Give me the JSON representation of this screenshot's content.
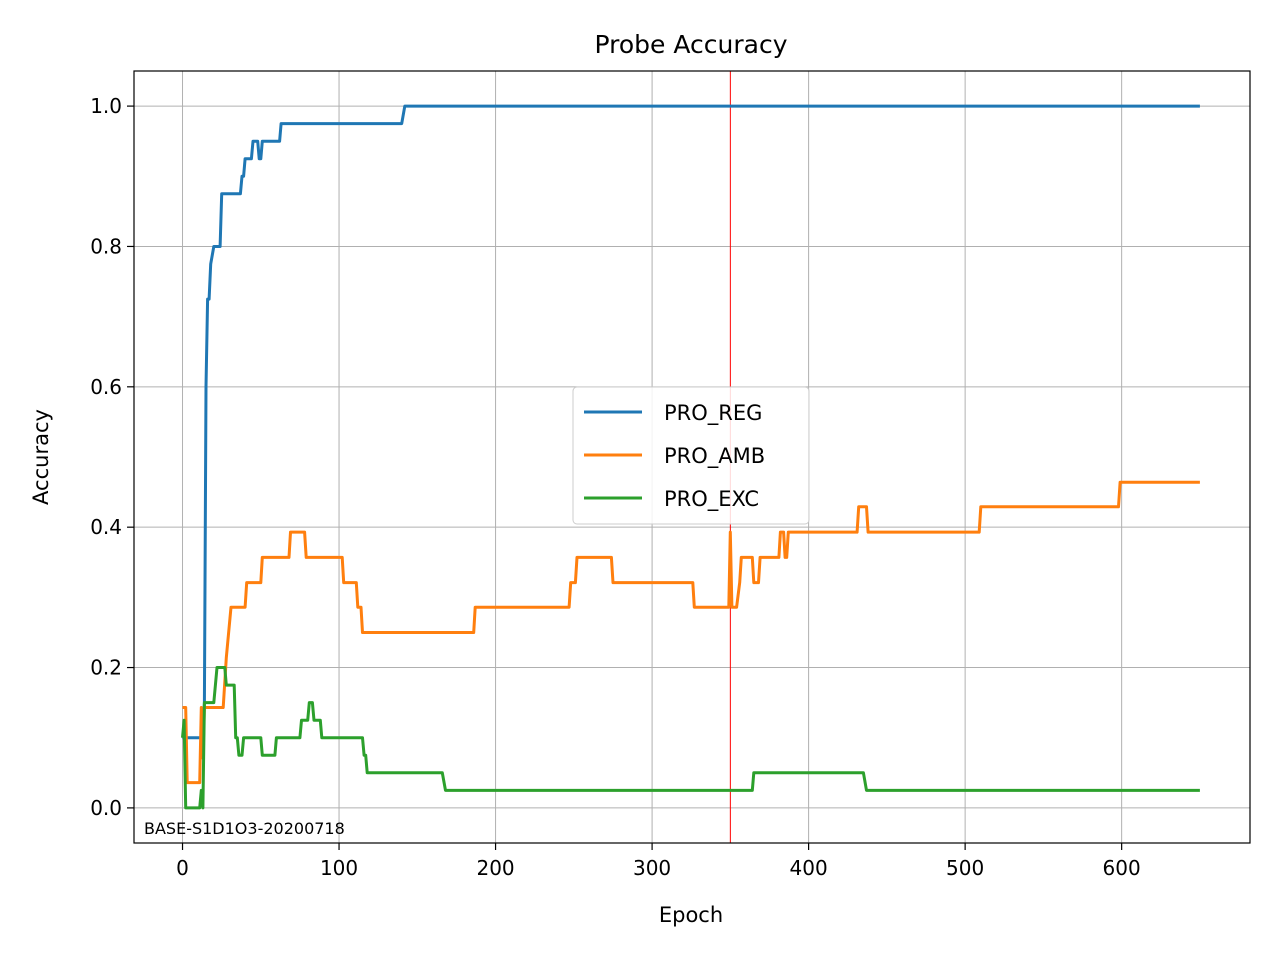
{
  "chart_data": {
    "type": "line",
    "title": "Probe Accuracy",
    "xlabel": "Epoch",
    "ylabel": "Accuracy",
    "xlim": [
      -31,
      682
    ],
    "ylim": [
      -0.05,
      1.05
    ],
    "xticks": [
      0,
      100,
      200,
      300,
      400,
      500,
      600
    ],
    "yticks": [
      0.0,
      0.2,
      0.4,
      0.6,
      0.8,
      1.0
    ],
    "xtick_labels": [
      "0",
      "100",
      "200",
      "300",
      "400",
      "500",
      "600"
    ],
    "ytick_labels": [
      "0.0",
      "0.2",
      "0.4",
      "0.6",
      "0.8",
      "1.0"
    ],
    "grid": true,
    "legend_position": "center-right",
    "vline": {
      "x": 350,
      "color": "#ff0000"
    },
    "annotation": "BASE-S1D1O3-20200718",
    "series": [
      {
        "name": "PRO_REG",
        "color": "#1f77b4",
        "points": [
          [
            0,
            0.1
          ],
          [
            13,
            0.1
          ],
          [
            14,
            0.15
          ],
          [
            15,
            0.6
          ],
          [
            16,
            0.725
          ],
          [
            17,
            0.725
          ],
          [
            18,
            0.775
          ],
          [
            20,
            0.8
          ],
          [
            24,
            0.8
          ],
          [
            25,
            0.875
          ],
          [
            37,
            0.875
          ],
          [
            38,
            0.9
          ],
          [
            39,
            0.9
          ],
          [
            40,
            0.925
          ],
          [
            44,
            0.925
          ],
          [
            45,
            0.95
          ],
          [
            48,
            0.95
          ],
          [
            49,
            0.925
          ],
          [
            50,
            0.925
          ],
          [
            51,
            0.95
          ],
          [
            62,
            0.95
          ],
          [
            63,
            0.975
          ],
          [
            140,
            0.975
          ],
          [
            142,
            1.0
          ],
          [
            650,
            1.0
          ]
        ]
      },
      {
        "name": "PRO_AMB",
        "color": "#ff7f0e",
        "points": [
          [
            0,
            0.143
          ],
          [
            2,
            0.143
          ],
          [
            3,
            0.036
          ],
          [
            11,
            0.036
          ],
          [
            12,
            0.143
          ],
          [
            13,
            0.071
          ],
          [
            14,
            0.143
          ],
          [
            26,
            0.143
          ],
          [
            28,
            0.214
          ],
          [
            31,
            0.286
          ],
          [
            40,
            0.286
          ],
          [
            41,
            0.321
          ],
          [
            50,
            0.321
          ],
          [
            51,
            0.357
          ],
          [
            68,
            0.357
          ],
          [
            69,
            0.393
          ],
          [
            78,
            0.393
          ],
          [
            79,
            0.357
          ],
          [
            102,
            0.357
          ],
          [
            103,
            0.321
          ],
          [
            111,
            0.321
          ],
          [
            112,
            0.286
          ],
          [
            114,
            0.286
          ],
          [
            115,
            0.25
          ],
          [
            186,
            0.25
          ],
          [
            187,
            0.286
          ],
          [
            247,
            0.286
          ],
          [
            248,
            0.321
          ],
          [
            251,
            0.321
          ],
          [
            252,
            0.357
          ],
          [
            274,
            0.357
          ],
          [
            275,
            0.321
          ],
          [
            326,
            0.321
          ],
          [
            327,
            0.286
          ],
          [
            349,
            0.286
          ],
          [
            350,
            0.393
          ],
          [
            351,
            0.286
          ],
          [
            354,
            0.286
          ],
          [
            356,
            0.321
          ],
          [
            357,
            0.357
          ],
          [
            364,
            0.357
          ],
          [
            365,
            0.321
          ],
          [
            368,
            0.321
          ],
          [
            369,
            0.357
          ],
          [
            381,
            0.357
          ],
          [
            382,
            0.393
          ],
          [
            384,
            0.393
          ],
          [
            385,
            0.357
          ],
          [
            386,
            0.357
          ],
          [
            387,
            0.393
          ],
          [
            431,
            0.393
          ],
          [
            432,
            0.429
          ],
          [
            437,
            0.429
          ],
          [
            438,
            0.393
          ],
          [
            509,
            0.393
          ],
          [
            510,
            0.429
          ],
          [
            598,
            0.429
          ],
          [
            599,
            0.464
          ],
          [
            650,
            0.464
          ]
        ]
      },
      {
        "name": "PRO_EXC",
        "color": "#2ca02c",
        "points": [
          [
            0,
            0.1
          ],
          [
            1,
            0.125
          ],
          [
            2,
            0.0
          ],
          [
            11,
            0.0
          ],
          [
            12,
            0.025
          ],
          [
            13,
            0.0
          ],
          [
            14,
            0.15
          ],
          [
            20,
            0.15
          ],
          [
            21,
            0.175
          ],
          [
            22,
            0.2
          ],
          [
            27,
            0.2
          ],
          [
            28,
            0.175
          ],
          [
            33,
            0.175
          ],
          [
            34,
            0.1
          ],
          [
            35,
            0.1
          ],
          [
            36,
            0.075
          ],
          [
            38,
            0.075
          ],
          [
            39,
            0.1
          ],
          [
            50,
            0.1
          ],
          [
            51,
            0.075
          ],
          [
            59,
            0.075
          ],
          [
            60,
            0.1
          ],
          [
            75,
            0.1
          ],
          [
            76,
            0.125
          ],
          [
            80,
            0.125
          ],
          [
            81,
            0.15
          ],
          [
            83,
            0.15
          ],
          [
            84,
            0.125
          ],
          [
            88,
            0.125
          ],
          [
            89,
            0.1
          ],
          [
            115,
            0.1
          ],
          [
            116,
            0.075
          ],
          [
            117,
            0.075
          ],
          [
            118,
            0.05
          ],
          [
            166,
            0.05
          ],
          [
            168,
            0.025
          ],
          [
            364,
            0.025
          ],
          [
            365,
            0.05
          ],
          [
            435,
            0.05
          ],
          [
            437,
            0.025
          ],
          [
            650,
            0.025
          ]
        ]
      }
    ]
  }
}
